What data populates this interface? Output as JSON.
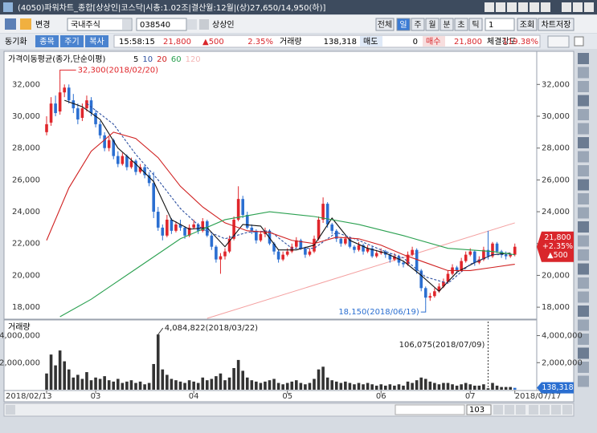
{
  "window": {
    "title": "(4050)파워차트_종합[상상인|코스닥|시총:1.02조|결산월:12월|(상)27,650/14,950(하)]"
  },
  "toolbar": {
    "change": "변경",
    "market": "국내주식",
    "code": "038540",
    "name": "상상인",
    "periods": [
      "전체",
      "일",
      "주",
      "월",
      "분",
      "초",
      "틱"
    ],
    "period_count": "1",
    "query": "조회",
    "save": "차트저장"
  },
  "status": {
    "sync": "동기화",
    "tabs": [
      "종목",
      "주기",
      "복사"
    ],
    "time": "15:58:15",
    "price": "21,800",
    "change": "▲500",
    "rate": "2.35%",
    "volume_label": "거래량",
    "volume": "138,318",
    "ask_label": "매도",
    "ask": "0",
    "bid_label": "매수",
    "bid": "21,800",
    "strength_label": "체결강도",
    "strength": "119.38%"
  },
  "chart_data": {
    "type": "candlestick",
    "legend_title": "가격이동평균(종가,단순이평)",
    "up_color": "#e0262b",
    "down_color": "#2b6fd1",
    "grid": false,
    "ylim": [
      17300,
      33980
    ],
    "yticks": [
      {
        "value": 18000,
        "label": "18,000"
      },
      {
        "value": 20000,
        "label": "20,000"
      },
      {
        "value": 22000,
        "label": "22,000"
      },
      {
        "value": 24000,
        "label": "24,000"
      },
      {
        "value": 26000,
        "label": "26,000"
      },
      {
        "value": 28000,
        "label": "28,000"
      },
      {
        "value": 30000,
        "label": "30,000"
      },
      {
        "value": 32000,
        "label": "32,000"
      }
    ],
    "xlabels": [
      {
        "at": 0,
        "label": "2018/02/13"
      },
      {
        "at": 11,
        "label": "03"
      },
      {
        "at": 33,
        "label": "04"
      },
      {
        "at": 54,
        "label": "05"
      },
      {
        "at": 75,
        "label": "06"
      },
      {
        "at": 95,
        "label": "07"
      },
      {
        "at": 105,
        "label": "2018/07/17"
      }
    ],
    "candles": [
      [
        29000,
        30000,
        28800,
        29500
      ],
      [
        29600,
        31200,
        29400,
        30800
      ],
      [
        30800,
        31300,
        30000,
        30200
      ],
      [
        30300,
        32300,
        30100,
        31500
      ],
      [
        31500,
        32000,
        31200,
        31800
      ],
      [
        31800,
        32000,
        30800,
        31000
      ],
      [
        31000,
        31400,
        30200,
        30500
      ],
      [
        30500,
        30800,
        29500,
        29800
      ],
      [
        29900,
        30800,
        29700,
        30500
      ],
      [
        30500,
        31300,
        30300,
        31000
      ],
      [
        31000,
        31200,
        30000,
        30200
      ],
      [
        30200,
        30400,
        29300,
        29500
      ],
      [
        29500,
        29700,
        28600,
        28800
      ],
      [
        28800,
        29000,
        27800,
        28000
      ],
      [
        28000,
        28700,
        27800,
        28500
      ],
      [
        28500,
        28600,
        27300,
        27500
      ],
      [
        27500,
        27800,
        26800,
        27000
      ],
      [
        27000,
        27700,
        26900,
        27500
      ],
      [
        27500,
        27600,
        26600,
        26800
      ],
      [
        26800,
        27400,
        26700,
        27200
      ],
      [
        27200,
        27300,
        26300,
        26500
      ],
      [
        26500,
        27000,
        26400,
        26800
      ],
      [
        26800,
        26900,
        26100,
        26300
      ],
      [
        26300,
        26500,
        25600,
        25800
      ],
      [
        25800,
        26500,
        23600,
        24000
      ],
      [
        24000,
        24300,
        22800,
        23000
      ],
      [
        23000,
        23200,
        22200,
        22500
      ],
      [
        22500,
        23800,
        22400,
        23500
      ],
      [
        23500,
        23600,
        22600,
        22800
      ],
      [
        22800,
        23400,
        22700,
        23200
      ],
      [
        23200,
        23500,
        22800,
        23000
      ],
      [
        23000,
        23100,
        22300,
        22500
      ],
      [
        22500,
        23200,
        22400,
        23000
      ],
      [
        23000,
        23500,
        22900,
        23200
      ],
      [
        23200,
        23300,
        22600,
        22800
      ],
      [
        22800,
        23600,
        22700,
        23400
      ],
      [
        23400,
        23500,
        22400,
        22500
      ],
      [
        22500,
        22600,
        21600,
        21800
      ],
      [
        21800,
        21900,
        20800,
        21000
      ],
      [
        21000,
        21400,
        20100,
        21200
      ],
      [
        21200,
        21700,
        21000,
        21500
      ],
      [
        21500,
        22500,
        21400,
        22300
      ],
      [
        22300,
        23700,
        22200,
        23500
      ],
      [
        23500,
        25600,
        23400,
        24800
      ],
      [
        24800,
        25000,
        23600,
        23800
      ],
      [
        23800,
        24000,
        22900,
        23000
      ],
      [
        23000,
        23200,
        22600,
        22800
      ],
      [
        22800,
        22900,
        22000,
        22200
      ],
      [
        22200,
        22800,
        22100,
        22600
      ],
      [
        22600,
        23000,
        22400,
        22800
      ],
      [
        22800,
        22900,
        21900,
        22000
      ],
      [
        22000,
        22100,
        21300,
        21500
      ],
      [
        21500,
        21600,
        20800,
        21000
      ],
      [
        21000,
        21500,
        20900,
        21300
      ],
      [
        21300,
        21700,
        21200,
        21500
      ],
      [
        21500,
        22000,
        21400,
        21800
      ],
      [
        21800,
        22400,
        21700,
        22200
      ],
      [
        22200,
        22300,
        21600,
        21700
      ],
      [
        21700,
        21800,
        21100,
        21300
      ],
      [
        21300,
        21700,
        21200,
        21500
      ],
      [
        21500,
        22500,
        21400,
        22300
      ],
      [
        22300,
        23700,
        22200,
        23500
      ],
      [
        23500,
        24900,
        23300,
        24500
      ],
      [
        24500,
        24600,
        23000,
        23200
      ],
      [
        23200,
        23300,
        22600,
        22800
      ],
      [
        22800,
        22900,
        22100,
        22300
      ],
      [
        22300,
        22400,
        21800,
        22000
      ],
      [
        22000,
        22500,
        21900,
        22300
      ],
      [
        22300,
        22400,
        21700,
        21800
      ],
      [
        21800,
        21900,
        21400,
        21600
      ],
      [
        21600,
        22100,
        21500,
        21900
      ],
      [
        21900,
        22000,
        21300,
        21500
      ],
      [
        21500,
        21900,
        21400,
        21700
      ],
      [
        21700,
        21800,
        21100,
        21200
      ],
      [
        21200,
        21600,
        21100,
        21400
      ],
      [
        21400,
        21700,
        21300,
        21500
      ],
      [
        21500,
        21600,
        21100,
        21300
      ],
      [
        21300,
        21400,
        20800,
        21000
      ],
      [
        21000,
        21400,
        20900,
        21200
      ],
      [
        21200,
        21300,
        20600,
        20800
      ],
      [
        20800,
        20900,
        20500,
        20700
      ],
      [
        20700,
        21500,
        20600,
        21300
      ],
      [
        21300,
        21800,
        21200,
        21600
      ],
      [
        21600,
        21700,
        20100,
        20300
      ],
      [
        20300,
        20400,
        19000,
        19200
      ],
      [
        19200,
        19300,
        18150,
        18600
      ],
      [
        18600,
        18900,
        18400,
        18700
      ],
      [
        18700,
        19200,
        18600,
        19000
      ],
      [
        19000,
        19500,
        18900,
        19300
      ],
      [
        19300,
        19800,
        19200,
        19600
      ],
      [
        19600,
        20300,
        19500,
        20100
      ],
      [
        20100,
        20700,
        20000,
        20500
      ],
      [
        20500,
        20600,
        20100,
        20300
      ],
      [
        20300,
        21100,
        20200,
        20900
      ],
      [
        20900,
        21500,
        20800,
        21300
      ],
      [
        21300,
        21700,
        21200,
        21500
      ],
      [
        21500,
        21600,
        20600,
        20800
      ],
      [
        20800,
        21200,
        20700,
        21000
      ],
      [
        21000,
        21800,
        20900,
        21600
      ],
      [
        21600,
        22800,
        21000,
        21200
      ],
      [
        21200,
        22100,
        21100,
        22000
      ],
      [
        22000,
        22100,
        21400,
        21500
      ],
      [
        21500,
        21600,
        21100,
        21300
      ],
      [
        21300,
        21500,
        21000,
        21200
      ],
      [
        21200,
        21400,
        21100,
        21300
      ],
      [
        21300,
        22000,
        21200,
        21800
      ]
    ],
    "ma": [
      {
        "name": "5",
        "color": "#111111",
        "dash": false,
        "x": [
          4,
          8,
          12,
          16,
          20,
          24,
          28,
          32,
          36,
          40,
          44,
          48,
          52,
          56,
          60,
          64,
          68,
          72,
          76,
          80,
          84,
          88,
          92,
          96,
          100,
          104
        ],
        "values": [
          31000,
          30600,
          29800,
          28000,
          27000,
          25900,
          23500,
          22900,
          23000,
          21800,
          23200,
          23100,
          21600,
          21600,
          21900,
          23600,
          22200,
          21700,
          21400,
          20900,
          20000,
          19000,
          20200,
          20800,
          21300,
          21400
        ]
      },
      {
        "name": "10",
        "color": "#2c4fa0",
        "dash": true,
        "x": [
          9,
          15,
          20,
          25,
          30,
          35,
          40,
          45,
          50,
          55,
          60,
          65,
          70,
          75,
          80,
          85,
          90,
          95,
          100,
          105
        ],
        "values": [
          30800,
          29500,
          27600,
          26000,
          24200,
          22900,
          22300,
          22700,
          22800,
          21700,
          21700,
          22700,
          22200,
          21600,
          21100,
          19900,
          19500,
          20700,
          21300,
          21300
        ]
      },
      {
        "name": "20",
        "color": "#d02020",
        "dash": false,
        "x": [
          0,
          5,
          10,
          15,
          20,
          25,
          30,
          35,
          40,
          45,
          50,
          55,
          60,
          65,
          70,
          75,
          80,
          85,
          90,
          95,
          100,
          105
        ],
        "values": [
          22200,
          25500,
          27800,
          29000,
          28600,
          27400,
          25600,
          24300,
          23300,
          22800,
          22700,
          22200,
          22000,
          22400,
          22300,
          21900,
          21300,
          20800,
          20300,
          20300,
          20500,
          20700
        ]
      },
      {
        "name": "60",
        "color": "#2aa050",
        "dash": false,
        "x": [
          3,
          10,
          20,
          30,
          40,
          50,
          60,
          70,
          80,
          90,
          100,
          105
        ],
        "values": [
          17400,
          18500,
          20400,
          22300,
          23500,
          24000,
          23700,
          23200,
          22500,
          21700,
          21500,
          21300
        ]
      },
      {
        "name": "120",
        "color": "#f4b6b6",
        "dash": false
      }
    ],
    "trendline": {
      "color": "#f4a0a0",
      "x": [
        36,
        105
      ],
      "values": [
        17300,
        23300
      ]
    },
    "annotations": [
      {
        "label": "32,300(2018/02/20)",
        "at": 3,
        "of": "high"
      },
      {
        "label": "18,150(2018/06/19)",
        "at": 85,
        "of": "low"
      }
    ],
    "last_labels": [
      "21,800",
      "+2.35%",
      "▲500"
    ],
    "last_color": "#d9262b",
    "volume": {
      "title": "거래량",
      "color": "#333333",
      "last_color": "#2b6fd1",
      "ylim": [
        0,
        5100000
      ],
      "yticks": [
        {
          "value": 2000000,
          "label": "2,000,000"
        },
        {
          "value": 4000000,
          "label": "4,000,000"
        }
      ],
      "values": [
        1200000,
        2600000,
        1800000,
        2900000,
        2100000,
        1500000,
        900000,
        1100000,
        800000,
        1300000,
        700000,
        900000,
        800000,
        1000000,
        700000,
        600000,
        800000,
        500000,
        600000,
        700000,
        500000,
        600000,
        400000,
        500000,
        1900000,
        4084822,
        1500000,
        1100000,
        800000,
        700000,
        600000,
        500000,
        700000,
        600000,
        500000,
        900000,
        700000,
        800000,
        1000000,
        1200000,
        700000,
        900000,
        1600000,
        2200000,
        1400000,
        900000,
        700000,
        600000,
        500000,
        600000,
        700000,
        800000,
        500000,
        400000,
        500000,
        600000,
        700000,
        500000,
        400000,
        500000,
        800000,
        1500000,
        1700000,
        900000,
        700000,
        600000,
        500000,
        600000,
        500000,
        400000,
        500000,
        400000,
        500000,
        400000,
        300000,
        400000,
        300000,
        400000,
        300000,
        400000,
        300000,
        600000,
        500000,
        700000,
        900000,
        800000,
        600000,
        500000,
        400000,
        500000,
        500000,
        400000,
        300000,
        400000,
        500000,
        400000,
        300000,
        300000,
        400000,
        106075,
        500000,
        300000,
        200000,
        200000,
        200000,
        138318
      ],
      "annotations": [
        {
          "label": "4,084,822(2018/03/22)",
          "at": 25
        },
        {
          "label": "106,075(2018/07/09)",
          "at": 99
        }
      ],
      "last_label": "138,318"
    }
  },
  "footer": {
    "zoom": "103"
  }
}
